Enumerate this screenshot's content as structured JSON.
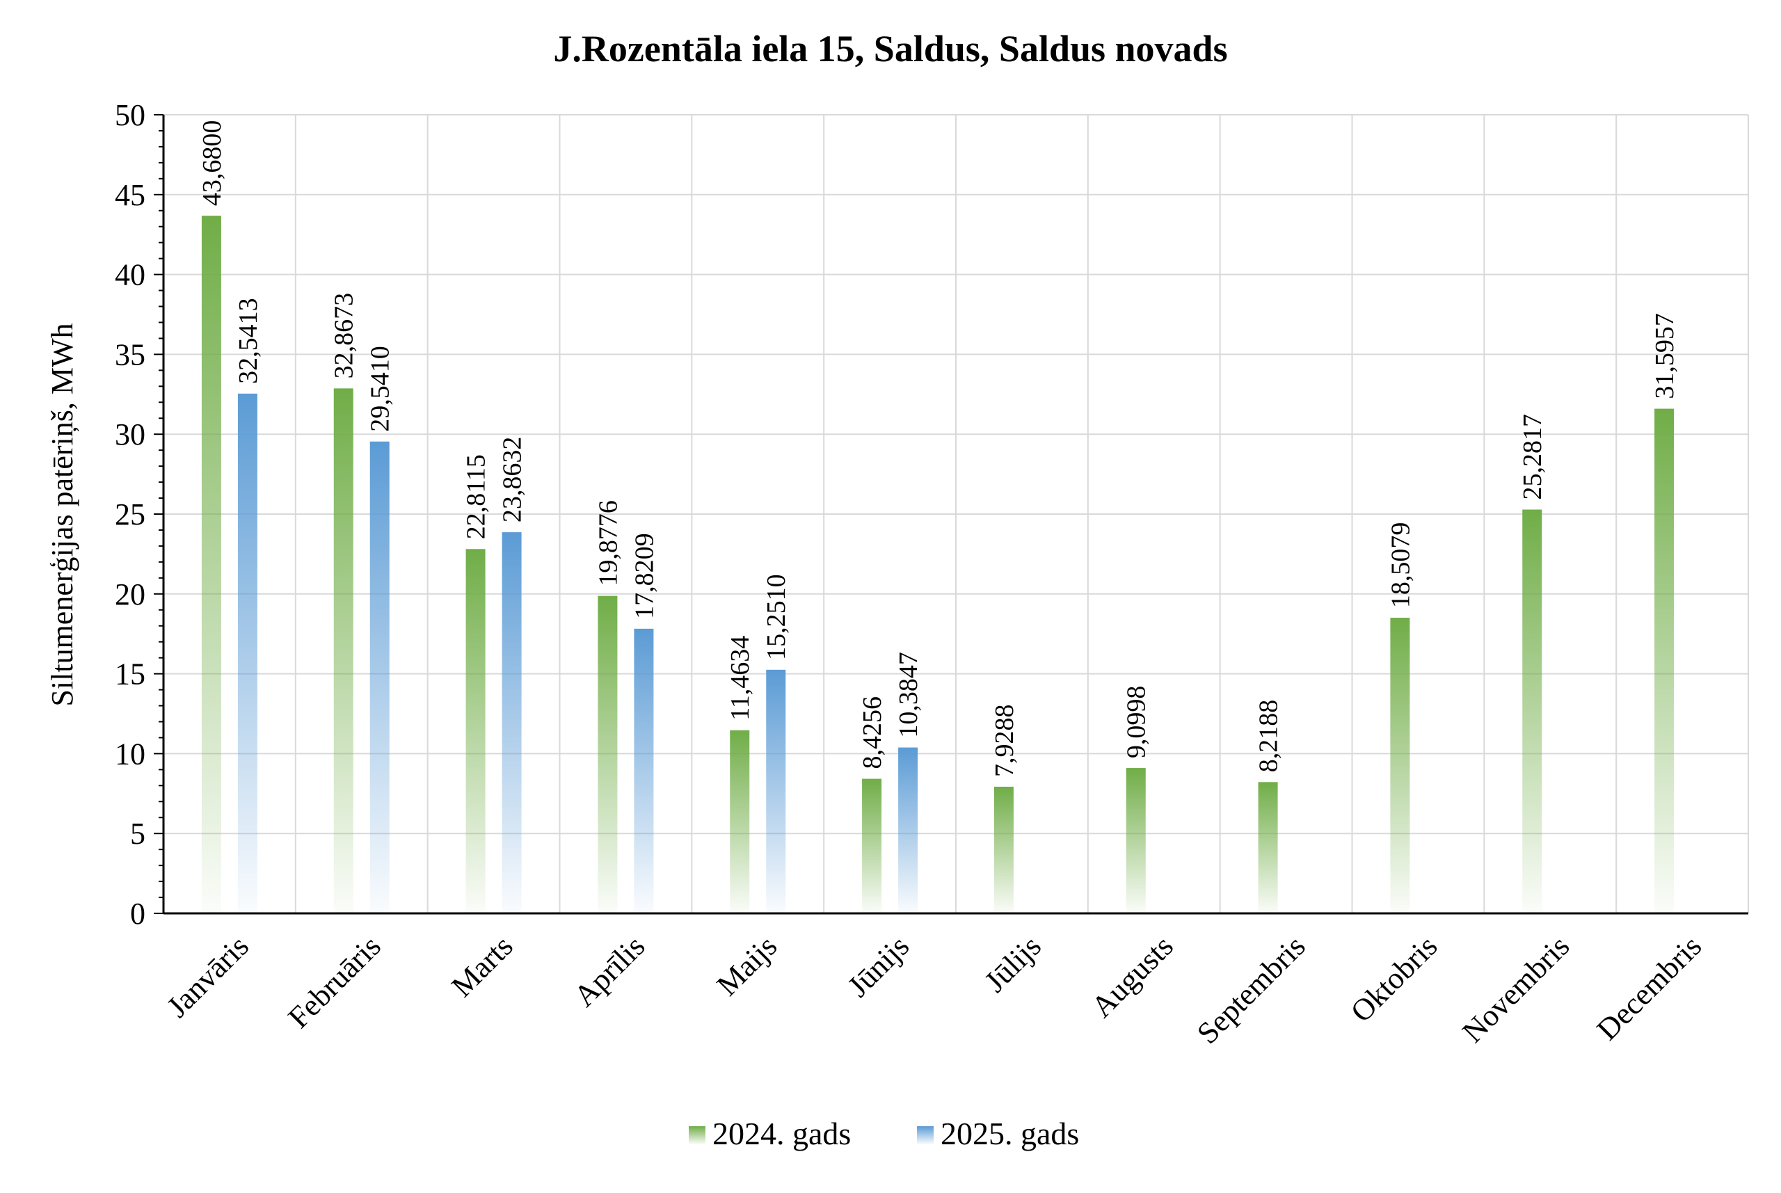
{
  "chart_data": {
    "type": "bar",
    "title": "J.Rozentāla iela 15, Saldus, Saldus novads",
    "xlabel": "",
    "ylabel": "Siltumenerģijas patēriņš, MWh",
    "ylim": [
      0,
      50
    ],
    "yticks": [
      0,
      5,
      10,
      15,
      20,
      25,
      30,
      35,
      40,
      45,
      50
    ],
    "grid": true,
    "legend_position": "bottom",
    "categories": [
      "Janvāris",
      "Februāris",
      "Marts",
      "Aprīlis",
      "Maijs",
      "Jūnijs",
      "Jūlijs",
      "Augusts",
      "Septembris",
      "Oktobris",
      "Novembris",
      "Decembris"
    ],
    "series": [
      {
        "name": "2024. gads",
        "color": "#70ad47",
        "values": [
          43.68,
          32.8673,
          22.8115,
          19.8776,
          11.4634,
          8.4256,
          7.9288,
          9.0998,
          8.2188,
          18.5079,
          25.2817,
          31.5957
        ],
        "labels": [
          "43,6800",
          "32,8673",
          "22,8115",
          "19,8776",
          "11,4634",
          "8,4256",
          "7,9288",
          "9,0998",
          "8,2188",
          "18,5079",
          "25,2817",
          "31,5957"
        ]
      },
      {
        "name": "2025. gads",
        "color": "#5b9bd5",
        "values": [
          32.5413,
          29.541,
          23.8632,
          17.8209,
          15.251,
          10.3847,
          null,
          null,
          null,
          null,
          null,
          null
        ],
        "labels": [
          "32,5413",
          "29,5410",
          "23,8632",
          "17,8209",
          "15,2510",
          "10,3847",
          null,
          null,
          null,
          null,
          null,
          null
        ]
      }
    ]
  }
}
